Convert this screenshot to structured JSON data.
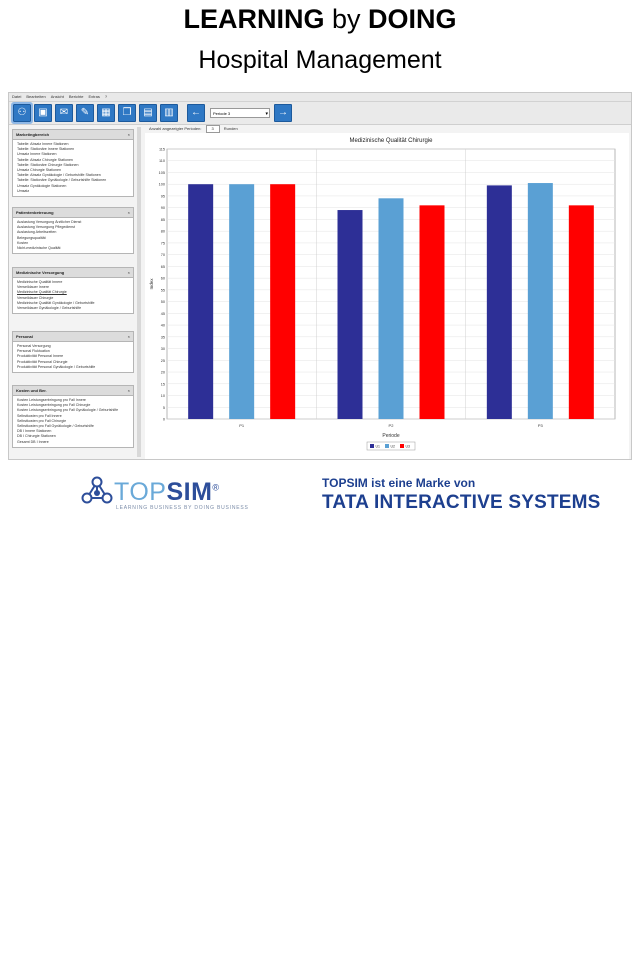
{
  "header": {
    "title_bold_1": "LEARNING",
    "title_mid": "by",
    "title_bold_2": "DOING",
    "subtitle": "Hospital Management"
  },
  "app": {
    "menu": [
      "Datei",
      "Bearbeiten",
      "Ansicht",
      "Berichte",
      "Extras",
      "?"
    ],
    "toolbar": {
      "buttons": [
        {
          "name": "network-icon",
          "glyph": "⚇"
        },
        {
          "name": "save-icon",
          "glyph": "▣"
        },
        {
          "name": "inbox-icon",
          "glyph": "✉"
        },
        {
          "name": "pencil-icon",
          "glyph": "✎"
        },
        {
          "name": "calculator-icon",
          "glyph": "▦"
        },
        {
          "name": "documents-icon",
          "glyph": "❐"
        },
        {
          "name": "clipboard-icon",
          "glyph": "▤"
        },
        {
          "name": "bar-chart-icon",
          "glyph": "▥"
        }
      ],
      "back_glyph": "←",
      "forward_glyph": "→",
      "select_value": "Periode 3",
      "dropdown_glyph": "▾"
    },
    "options": {
      "label": "Anzahl angezeigter Perioden:",
      "value": "3",
      "extra": "Runden"
    },
    "sidebar": {
      "panels": [
        {
          "title": "Marketingbereich",
          "close": "×",
          "items": [
            "Tabelle: Absatz Innere Stationen",
            "Tabelle: Stationäre Innere Stationen",
            "Umsatz Innere Stationen",
            "Tabelle: Absatz Chirurgie Stationen",
            "Tabelle: Stationäre Chirurgie Stationen",
            "Umsatz Chirurgie Stationen",
            "Tabelle: Absatz Gynäkologie / Geburtshilfe Stationen",
            "Tabelle: Stationäre Gynäkologie / Geburtshilfe Stationen",
            "Umsatz Gynäkologie Stationen",
            "Umsatz"
          ]
        },
        {
          "title": "Patientenbetreuung",
          "close": "×",
          "items": [
            "Auslastung Versorgung Ärztlicher Dienst",
            "Auslastung Versorgung Pflegedienst",
            "Auslastung Arbeitszeiten",
            "Belegungsqualität",
            "Kosten",
            "Nicht-medizinische Qualität"
          ]
        },
        {
          "title": "Medizinische Versorgung",
          "close": "×",
          "items": [
            "Medizinische Qualität Innere",
            "Verweildauer Innere",
            "Medizinische Qualität Chirurgie",
            "Verweildauer Chirurgie",
            "Medizinische Qualität Gynäkologie / Geburtshilfe",
            "Verweildauer Gynäkologie / Geburtshilfe"
          ],
          "selected_index": 2
        },
        {
          "title": "Personal",
          "close": "×",
          "items": [
            "Personal Versorgung",
            "Personal Fluktuation",
            "Produktivität Personal Innere",
            "Produktivität Personal Chirurgie",
            "Produktivität Personal Gynäkologie / Geburtshilfe"
          ]
        },
        {
          "title": "Kosten und Ber.",
          "close": "×",
          "items": [
            "Kosten Leistungserbringung pro Fall Innere",
            "Kosten Leistungserbringung pro Fall Chirurgie",
            "Kosten Leistungserbringung pro Fall Gynäkologie / Geburtshilfe",
            "Selbstkosten pro Fall Innere",
            "Selbstkosten pro Fall Chirurgie",
            "Selbstkosten pro Fall Gynäkologie / Geburtshilfe",
            "DB I Innere Stationen",
            "DB I Chirurgie Stationen",
            "Gesamt DB I Innere"
          ]
        }
      ]
    }
  },
  "chart_data": {
    "type": "bar",
    "title": "Medizinische Qualität Chirurgie",
    "xlabel": "Periode",
    "ylabel": "Index",
    "categories": [
      "P1",
      "P2",
      "P3"
    ],
    "yticks": [
      "0",
      "5",
      "10",
      "15",
      "20",
      "25",
      "30",
      "35",
      "40",
      "45",
      "50",
      "55",
      "60",
      "65",
      "70",
      "75",
      "80",
      "85",
      "90",
      "95",
      "100",
      "105",
      "110",
      "115"
    ],
    "ylim": [
      0,
      115
    ],
    "grid": true,
    "legend_placement": "bottom",
    "series": [
      {
        "name": "U1",
        "color": "#2d2f96",
        "values": [
          100,
          89,
          99.5
        ]
      },
      {
        "name": "U2",
        "color": "#5aa0d4",
        "values": [
          100,
          94,
          100.5
        ]
      },
      {
        "name": "U3",
        "color": "#ff0000",
        "values": [
          100,
          91,
          91
        ]
      }
    ]
  },
  "footer": {
    "topsim_a": "TOP",
    "topsim_b": "SIM",
    "topsim_reg": "®",
    "topsim_tagline": "LEARNING BUSINESS BY DOING BUSINESS",
    "tata_line1": "TOPSIM ist eine Marke von",
    "tata_line2": "TATA INTERACTIVE SYSTEMS"
  }
}
